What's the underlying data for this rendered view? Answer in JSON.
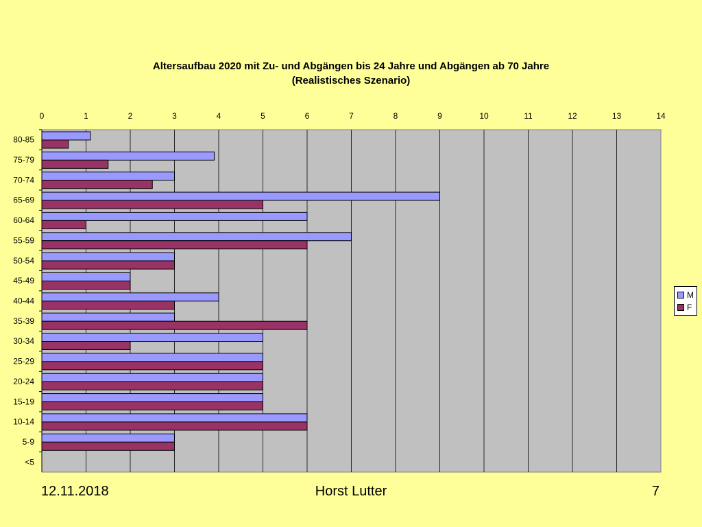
{
  "chart_data": {
    "type": "bar",
    "orientation": "horizontal",
    "title_line1": "Altersaufbau 2020 mit Zu- und Abgängen bis 24 Jahre und Abgängen ab 70 Jahre",
    "title_line2": "(Realistisches Szenario)",
    "categories": [
      "80-85",
      "75-79",
      "70-74",
      "65-69",
      "60-64",
      "55-59",
      "50-54",
      "45-49",
      "40-44",
      "35-39",
      "30-34",
      "25-29",
      "20-24",
      "15-19",
      "10-14",
      "5-9",
      "<5"
    ],
    "series": [
      {
        "name": "M",
        "color": "#9999FF",
        "values": [
          1.1,
          3.9,
          3,
          9,
          6,
          7,
          3,
          2,
          4,
          3,
          5,
          5,
          5,
          5,
          6,
          3,
          0
        ]
      },
      {
        "name": "F",
        "color": "#993366",
        "values": [
          0.6,
          1.5,
          2.5,
          5,
          1,
          6,
          3,
          2,
          3,
          6,
          2,
          5,
          5,
          5,
          6,
          3,
          0
        ]
      }
    ],
    "xlim": [
      0,
      14
    ],
    "xticks": [
      0,
      1,
      2,
      3,
      4,
      5,
      6,
      7,
      8,
      9,
      10,
      11,
      12,
      13,
      14
    ],
    "xaxis_position": "top",
    "grid": true,
    "plot_background": "#C0C0C0",
    "legend_position": "right"
  },
  "footer": {
    "date": "12.11.2018",
    "author": "Horst Lutter",
    "page": "7"
  }
}
